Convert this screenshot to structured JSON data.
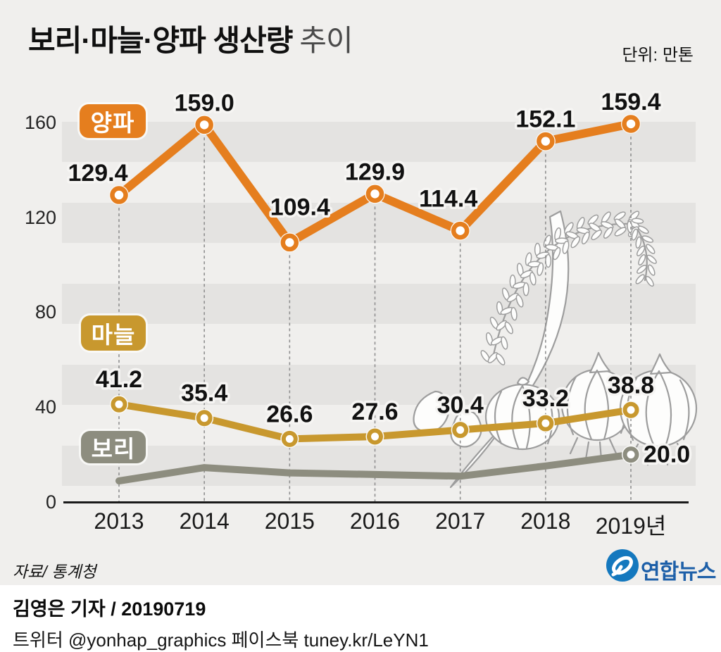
{
  "header": {
    "title_main": "보리·마늘·양파 생산량",
    "title_sub": "추이",
    "unit_label": "단위: 만톤"
  },
  "chart_data": {
    "type": "line",
    "title": "보리·마늘·양파 생산량 추이",
    "unit": "만톤",
    "x_categories": [
      "2013",
      "2014",
      "2015",
      "2016",
      "2017",
      "2018",
      "2019년"
    ],
    "yticks": [
      0,
      40,
      80,
      120,
      160
    ],
    "ylim": [
      0,
      170
    ],
    "grid": "vertical dashed line per year; horizontal gray bands",
    "legend_position": "color chips beside each series start",
    "series": [
      {
        "name": "양파",
        "name_en": "onion",
        "color": "#e57e1e",
        "values": [
          129.4,
          159.0,
          109.4,
          129.9,
          114.4,
          152.1,
          159.4
        ],
        "labels": [
          "129.4",
          "159.0",
          "109.4",
          "129.9",
          "114.4",
          "152.1",
          "159.4"
        ]
      },
      {
        "name": "마늘",
        "name_en": "garlic",
        "color": "#c8982e",
        "values": [
          41.2,
          35.4,
          26.6,
          27.6,
          30.4,
          33.2,
          38.8
        ],
        "labels": [
          "41.2",
          "35.4",
          "26.6",
          "27.6",
          "30.4",
          "33.2",
          "38.8"
        ]
      },
      {
        "name": "보리",
        "name_en": "barley",
        "color": "#8d8d7f",
        "values": [
          8.9,
          14.5,
          12.3,
          11.6,
          10.9,
          15.2,
          20.0
        ],
        "labels": [
          null,
          null,
          null,
          null,
          null,
          null,
          "20.0"
        ],
        "note": "only the 2019 value is labeled on the chart; earlier values estimated from line position"
      }
    ]
  },
  "source": {
    "label": "자료/ 통계청"
  },
  "logo": {
    "text": "연합뉴스"
  },
  "footer": {
    "byline": "김영은 기자 / 20190719",
    "social": "트위터 @yonhap_graphics  페이스북 tuney.kr/LeYN1"
  }
}
